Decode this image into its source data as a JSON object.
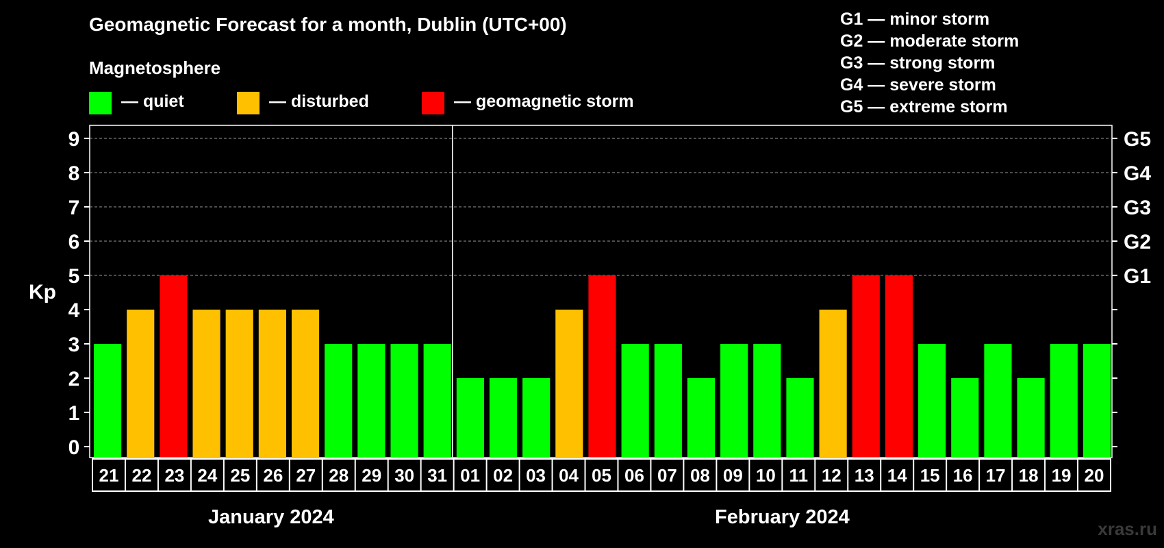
{
  "title": "Geomagnetic Forecast for a month, Dublin (UTC+00)",
  "subtitle": "Magnetosphere",
  "legend": [
    {
      "label": "— quiet",
      "color": "#00ff00"
    },
    {
      "label": "— disturbed",
      "color": "#ffc000"
    },
    {
      "label": "— geomagnetic storm",
      "color": "#ff0000"
    }
  ],
  "g_scale": [
    "G1 — minor storm",
    "G2 — moderate storm",
    "G3 — strong storm",
    "G4 — severe storm",
    "G5 — extreme storm"
  ],
  "watermark": "xras.ru",
  "chart_data": {
    "type": "bar",
    "ylabel": "Kp",
    "ylim": [
      0,
      9
    ],
    "yticks": [
      "0",
      "1",
      "2",
      "3",
      "4",
      "5",
      "6",
      "7",
      "8",
      "9"
    ],
    "right_axis_labels": [
      {
        "value": 5,
        "label": "G1"
      },
      {
        "value": 6,
        "label": "G2"
      },
      {
        "value": 7,
        "label": "G3"
      },
      {
        "value": 8,
        "label": "G4"
      },
      {
        "value": 9,
        "label": "G5"
      }
    ],
    "grid": "dashed horizontal at 5-9",
    "categories": [
      "21",
      "22",
      "23",
      "24",
      "25",
      "26",
      "27",
      "28",
      "29",
      "30",
      "31",
      "01",
      "02",
      "03",
      "04",
      "05",
      "06",
      "07",
      "08",
      "09",
      "10",
      "11",
      "12",
      "13",
      "14",
      "15",
      "16",
      "17",
      "18",
      "19",
      "20"
    ],
    "values": [
      3,
      4,
      5,
      4,
      4,
      4,
      4,
      3,
      3,
      3,
      3,
      2,
      2,
      2,
      4,
      5,
      3,
      3,
      2,
      3,
      3,
      2,
      4,
      5,
      5,
      3,
      2,
      3,
      2,
      3,
      3
    ],
    "months": [
      {
        "label": "January 2024",
        "first_index": 0,
        "last_index": 10
      },
      {
        "label": "February 2024",
        "first_index": 11,
        "last_index": 30
      }
    ],
    "colors": {
      "quiet": "#00ff00",
      "disturbed": "#ffc000",
      "storm": "#ff0000"
    }
  }
}
